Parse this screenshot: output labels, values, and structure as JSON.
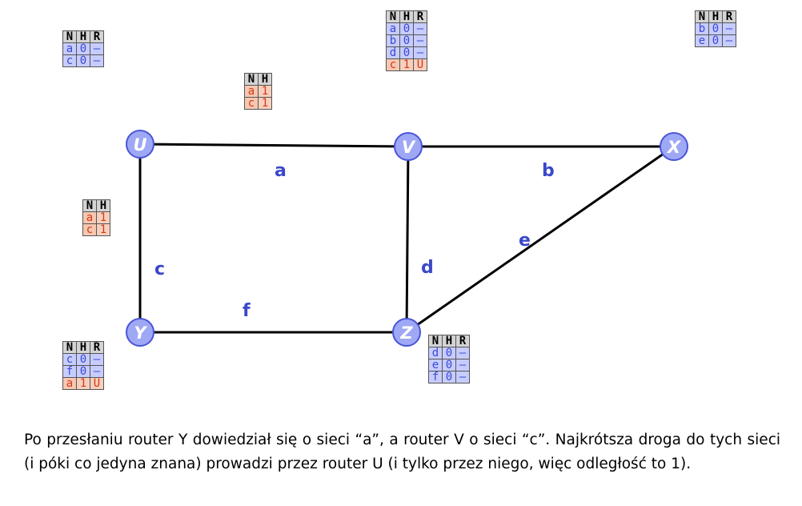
{
  "nodes": [
    {
      "id": "U",
      "label": "U"
    },
    {
      "id": "V",
      "label": "V"
    },
    {
      "id": "X",
      "label": "X"
    },
    {
      "id": "Y",
      "label": "Y"
    },
    {
      "id": "Z",
      "label": "Z"
    }
  ],
  "edges": [
    {
      "label": "a",
      "from": "U",
      "to": "V"
    },
    {
      "label": "b",
      "from": "V",
      "to": "X"
    },
    {
      "label": "c",
      "from": "U",
      "to": "Y"
    },
    {
      "label": "d",
      "from": "V",
      "to": "Z"
    },
    {
      "label": "e",
      "from": "X",
      "to": "Z"
    },
    {
      "label": "f",
      "from": "Y",
      "to": "Z"
    }
  ],
  "tables": {
    "U": {
      "headers": [
        "N",
        "H",
        "R"
      ],
      "rows": [
        {
          "cells": [
            "a",
            "0",
            "–"
          ],
          "new": false
        },
        {
          "cells": [
            "c",
            "0",
            "–"
          ],
          "new": false
        }
      ]
    },
    "message_from_U_to_V": {
      "headers": [
        "N",
        "H"
      ],
      "rows": [
        {
          "cells": [
            "a",
            "1"
          ],
          "new": true
        },
        {
          "cells": [
            "c",
            "1"
          ],
          "new": true
        }
      ]
    },
    "V": {
      "headers": [
        "N",
        "H",
        "R"
      ],
      "rows": [
        {
          "cells": [
            "a",
            "0",
            "–"
          ],
          "new": false
        },
        {
          "cells": [
            "b",
            "0",
            "–"
          ],
          "new": false
        },
        {
          "cells": [
            "d",
            "0",
            "–"
          ],
          "new": false
        },
        {
          "cells": [
            "c",
            "1",
            "U"
          ],
          "new": true
        }
      ]
    },
    "X": {
      "headers": [
        "N",
        "H",
        "R"
      ],
      "rows": [
        {
          "cells": [
            "b",
            "0",
            "–"
          ],
          "new": false
        },
        {
          "cells": [
            "e",
            "0",
            "–"
          ],
          "new": false
        }
      ]
    },
    "message_from_U_to_Y": {
      "headers": [
        "N",
        "H"
      ],
      "rows": [
        {
          "cells": [
            "a",
            "1"
          ],
          "new": true
        },
        {
          "cells": [
            "c",
            "1"
          ],
          "new": true
        }
      ]
    },
    "Y": {
      "headers": [
        "N",
        "H",
        "R"
      ],
      "rows": [
        {
          "cells": [
            "c",
            "0",
            "–"
          ],
          "new": false
        },
        {
          "cells": [
            "f",
            "0",
            "–"
          ],
          "new": false
        },
        {
          "cells": [
            "a",
            "1",
            "U"
          ],
          "new": true
        }
      ]
    },
    "Z": {
      "headers": [
        "N",
        "H",
        "R"
      ],
      "rows": [
        {
          "cells": [
            "d",
            "0",
            "–"
          ],
          "new": false
        },
        {
          "cells": [
            "e",
            "0",
            "–"
          ],
          "new": false
        },
        {
          "cells": [
            "f",
            "0",
            "–"
          ],
          "new": false
        }
      ]
    }
  },
  "caption": "Po przesłaniu router Y dowiedział się o sieci “a”, a router V o sieci “c”. Najkrótsza droga do tych sieci (i póki co jedyna znana) prowadzi przez router U (i tylko przez niego, więc odległość to 1).",
  "colors": {
    "node_fill": "#9ea8f5",
    "node_stroke": "#4a55d6",
    "edge_label": "#3b48c9",
    "cell_known": "#c7ccff",
    "cell_new": "#f7d0bd",
    "text_new": "#d53818"
  }
}
